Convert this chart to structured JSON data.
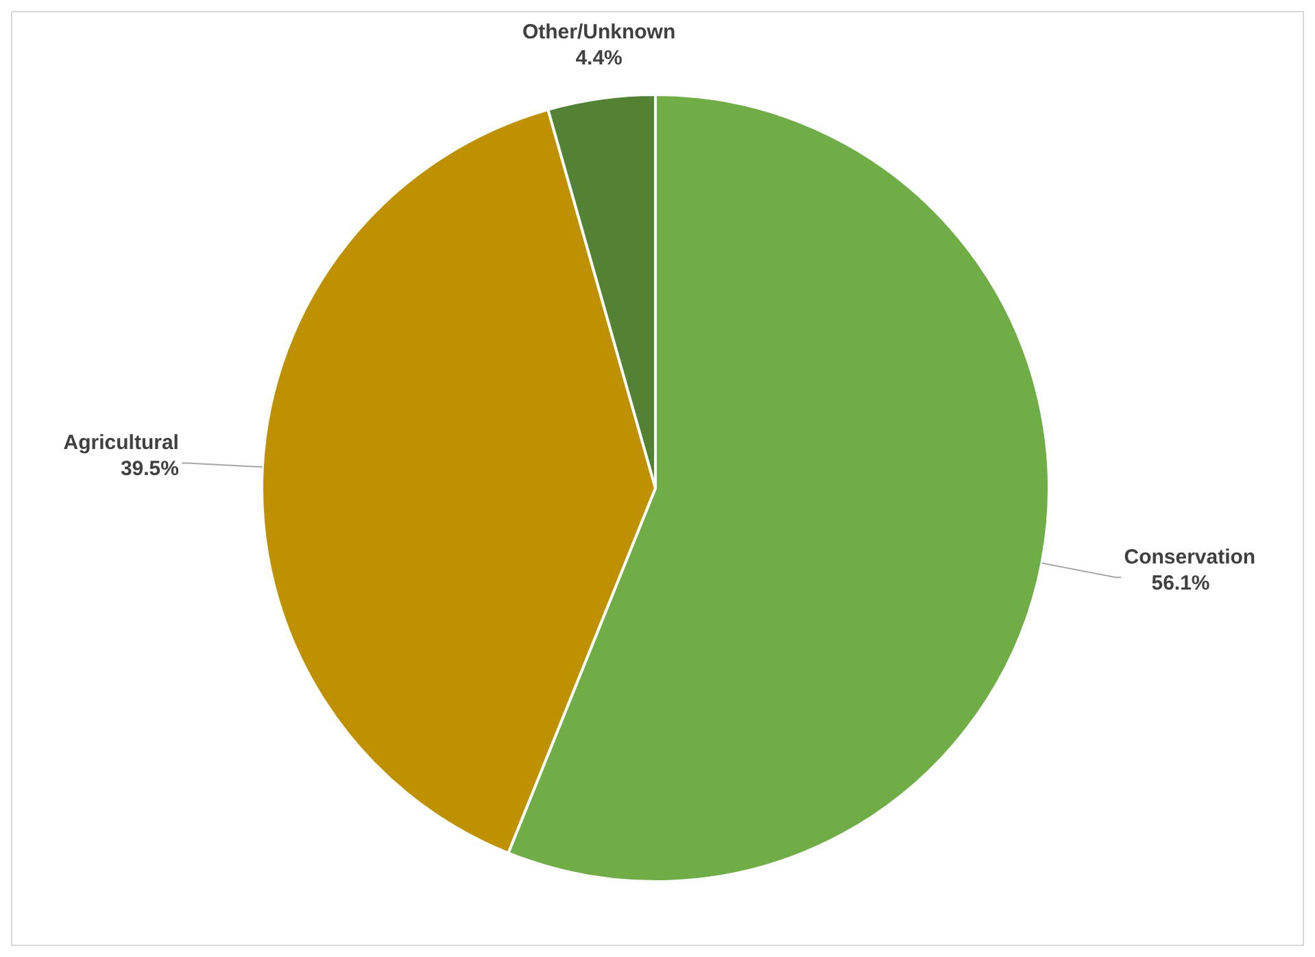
{
  "chart_data": {
    "type": "pie",
    "categories": [
      "Conservation",
      "Agricultural",
      "Other/Unknown"
    ],
    "values": [
      56.1,
      39.5,
      4.4
    ],
    "colors": [
      "#70ad47",
      "#bf9000",
      "#548235"
    ],
    "value_labels": [
      "56.1%",
      "39.5%",
      "4.4%"
    ]
  }
}
